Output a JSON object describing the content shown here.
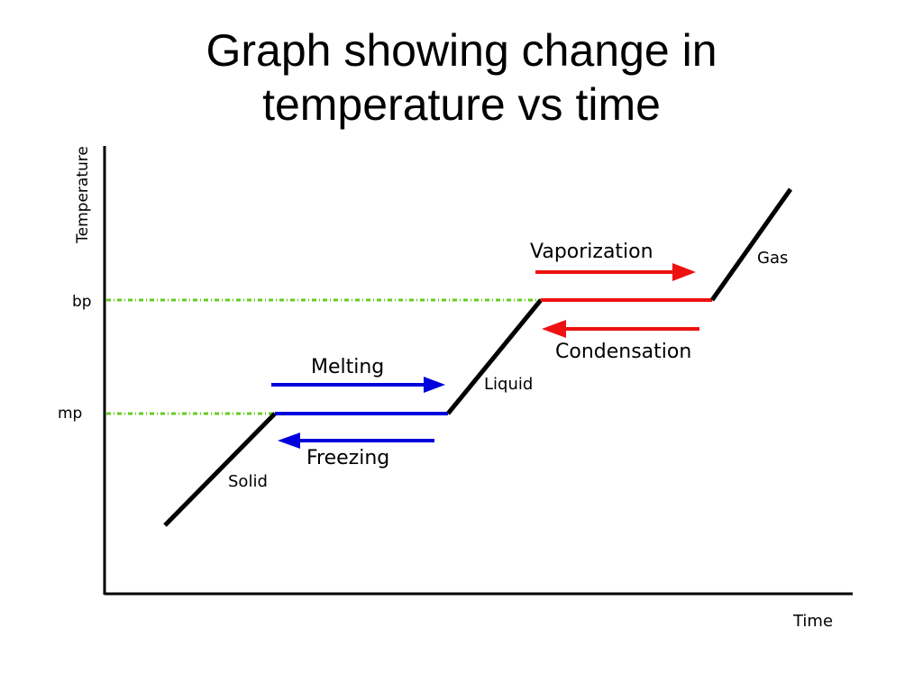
{
  "title_lines": [
    "Graph showing change in",
    "temperature vs time"
  ],
  "chart_data": {
    "type": "line",
    "title": "Graph showing change in temperature vs time",
    "xlabel": "Time",
    "ylabel": "Temperature",
    "y_ticks": [
      "bp",
      "mp"
    ],
    "grid": false,
    "phase_labels": [
      "Solid",
      "Liquid",
      "Gas"
    ],
    "transitions": [
      {
        "label": "Melting",
        "direction": "right",
        "color": "#0000dd"
      },
      {
        "label": "Freezing",
        "direction": "left",
        "color": "#0000dd"
      },
      {
        "label": "Vaporization",
        "direction": "right",
        "color": "#ee1111"
      },
      {
        "label": "Condensation",
        "direction": "left",
        "color": "#ee1111"
      }
    ],
    "colors": {
      "curve": "#000000",
      "melting_plateau": "#0000dd",
      "boiling_plateau": "#ee1111",
      "guide": "#66cc22"
    }
  }
}
